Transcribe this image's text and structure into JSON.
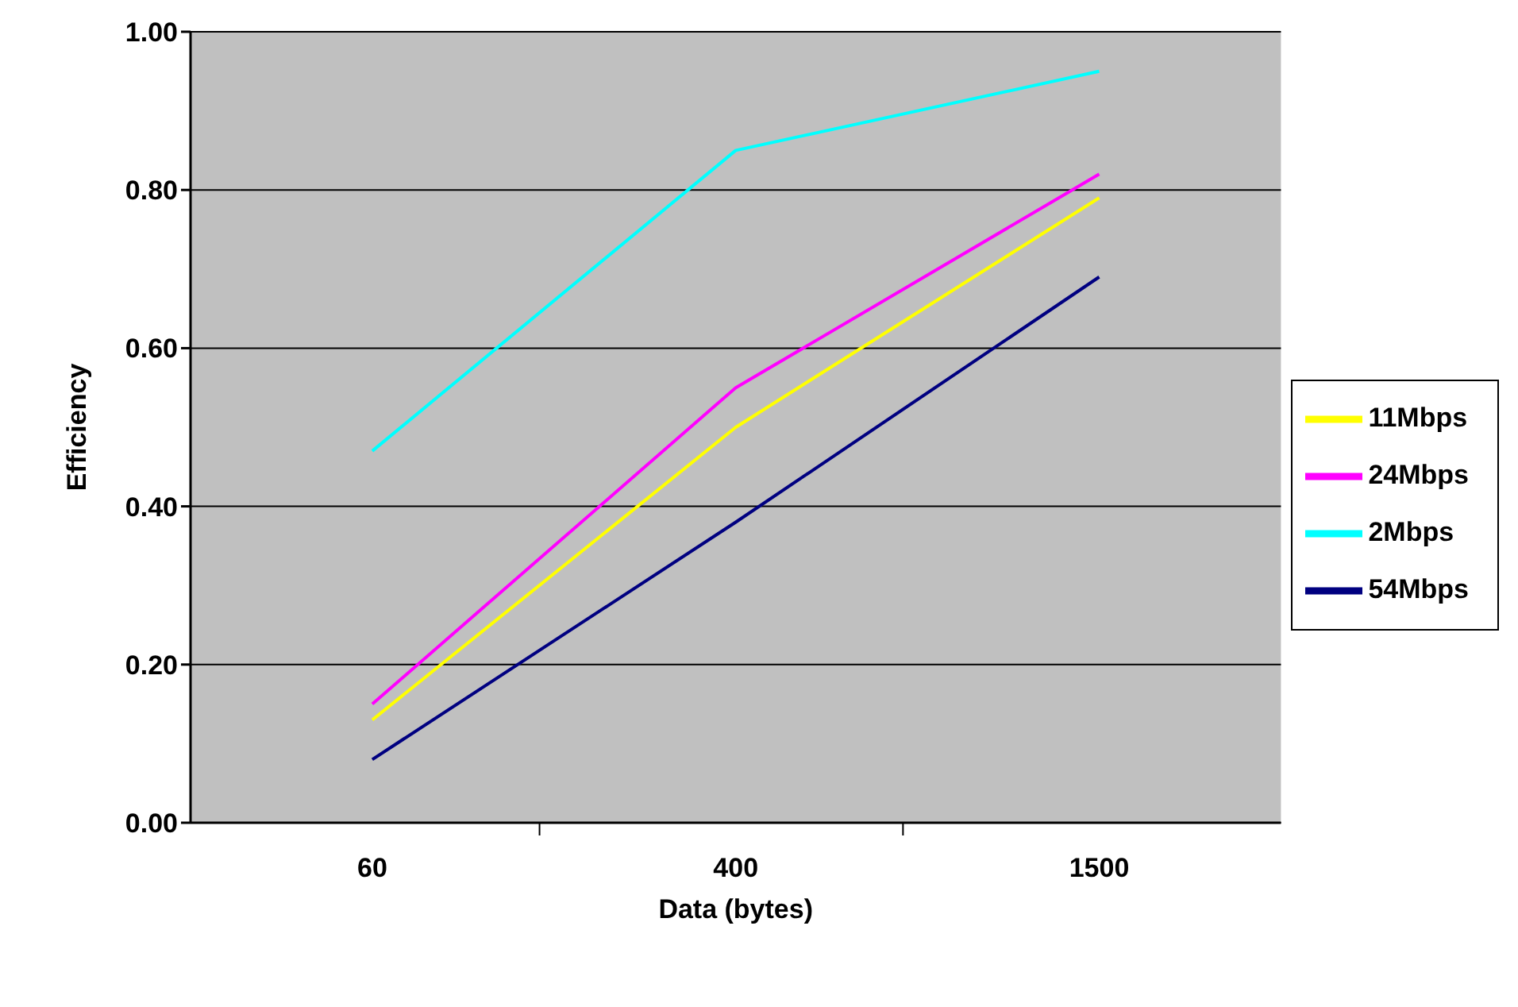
{
  "chart_data": {
    "type": "line",
    "xlabel": "Data (bytes)",
    "ylabel": "Efficiency",
    "categories": [
      "60",
      "400",
      "1500"
    ],
    "series": [
      {
        "name": "54Mbps",
        "color": "#000080",
        "values": [
          0.08,
          0.38,
          0.69
        ]
      },
      {
        "name": "24Mbps",
        "color": "#ff00ff",
        "values": [
          0.15,
          0.55,
          0.82
        ]
      },
      {
        "name": "11Mbps",
        "color": "#ffff00",
        "values": [
          0.13,
          0.5,
          0.79
        ]
      },
      {
        "name": "2Mbps",
        "color": "#00ffff",
        "values": [
          0.47,
          0.85,
          0.95
        ]
      }
    ],
    "ylim": [
      0,
      1
    ],
    "yticks": [
      {
        "value": 0,
        "label": "0.00"
      },
      {
        "value": 0.2,
        "label": "0.20"
      },
      {
        "value": 0.4,
        "label": "0.40"
      },
      {
        "value": 0.6,
        "label": "0.60"
      },
      {
        "value": 0.8,
        "label": "0.80"
      },
      {
        "value": 1,
        "label": "1.00"
      }
    ],
    "grid": "y",
    "legend": "right",
    "marker": "none",
    "line_style": "solid"
  }
}
